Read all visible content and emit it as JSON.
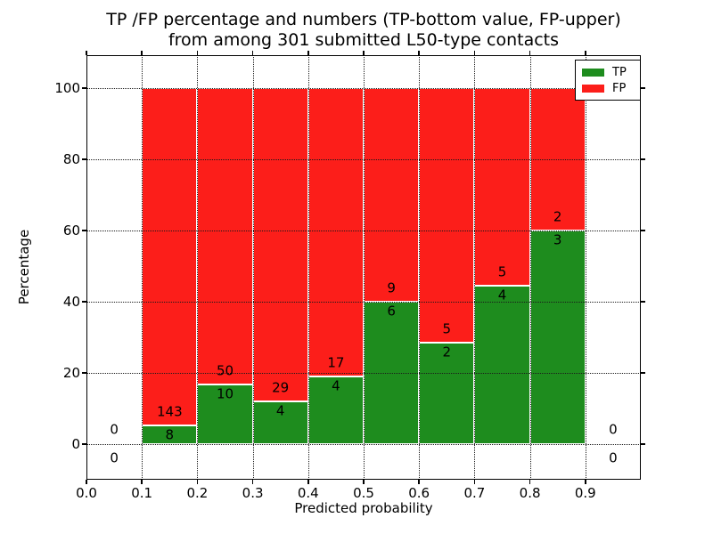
{
  "title": {
    "line1": "TP /FP percentage and numbers (TP-bottom value, FP-upper)",
    "line2": "from among 301 submitted L50-type contacts"
  },
  "axes": {
    "xlabel": "Predicted probability",
    "ylabel": "Percentage",
    "ytick_labels": [
      "0",
      "20",
      "40",
      "60",
      "80",
      "100"
    ],
    "xtick_labels": [
      "0.0",
      "0.1",
      "0.2",
      "0.3",
      "0.4",
      "0.5",
      "0.6",
      "0.7",
      "0.8",
      "0.9"
    ]
  },
  "legend": {
    "items": [
      {
        "label": "TP",
        "color": "#1e8c1e"
      },
      {
        "label": "FP",
        "color": "#fc1e1a"
      }
    ]
  },
  "colors": {
    "tp": "#1e8c1e",
    "fp": "#fc1e1a",
    "bar_edge": "#ffffff",
    "grid": "#1a1a1a",
    "frame": "#000000",
    "background": "#ffffff",
    "text": "#000000"
  },
  "chart_data": {
    "type": "bar",
    "stacked": true,
    "normalized_to_percent": true,
    "title": "TP /FP percentage and numbers (TP-bottom value, FP-upper) from among 301 submitted L50-type contacts",
    "xlabel": "Predicted probability",
    "ylabel": "Percentage",
    "xlim": [
      0.0,
      1.0
    ],
    "ylim": [
      -10,
      110
    ],
    "yticks": [
      0,
      20,
      40,
      60,
      80,
      100
    ],
    "xticks": [
      0.0,
      0.1,
      0.2,
      0.3,
      0.4,
      0.5,
      0.6,
      0.7,
      0.8,
      0.9
    ],
    "grid": "dotted, drawn above bars",
    "legend_position": "upper right",
    "bin_width": 0.1,
    "total_contacts": 301,
    "bins": [
      {
        "x_start": 0.0,
        "tp": 0,
        "fp": 0
      },
      {
        "x_start": 0.1,
        "tp": 8,
        "fp": 143
      },
      {
        "x_start": 0.2,
        "tp": 10,
        "fp": 50
      },
      {
        "x_start": 0.3,
        "tp": 4,
        "fp": 29
      },
      {
        "x_start": 0.4,
        "tp": 4,
        "fp": 17
      },
      {
        "x_start": 0.5,
        "tp": 6,
        "fp": 9
      },
      {
        "x_start": 0.6,
        "tp": 2,
        "fp": 5
      },
      {
        "x_start": 0.7,
        "tp": 4,
        "fp": 5
      },
      {
        "x_start": 0.8,
        "tp": 3,
        "fp": 2
      },
      {
        "x_start": 0.9,
        "tp": 0,
        "fp": 0
      }
    ],
    "series": [
      {
        "name": "TP",
        "color": "#1e8c1e",
        "counts": [
          0,
          8,
          10,
          4,
          4,
          6,
          2,
          4,
          3,
          0
        ],
        "percent_of_bin": [
          null,
          5.3,
          16.7,
          12.1,
          19.0,
          40.0,
          28.6,
          44.4,
          60.0,
          null
        ]
      },
      {
        "name": "FP",
        "color": "#fc1e1a",
        "counts": [
          0,
          143,
          50,
          29,
          17,
          9,
          5,
          5,
          2,
          0
        ],
        "percent_of_bin": [
          null,
          94.7,
          83.3,
          87.9,
          81.0,
          60.0,
          71.4,
          55.6,
          40.0,
          null
        ]
      }
    ]
  }
}
